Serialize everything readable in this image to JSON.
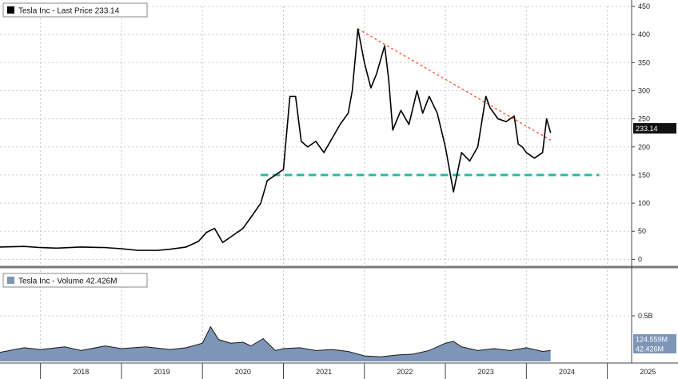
{
  "chart_data": [
    {
      "type": "line",
      "legend": "Tesla Inc - Last Price 233.14",
      "last_value_label": "233.14",
      "colors": {
        "price": "#000000",
        "trend": "#ff6040",
        "support": "#1bbfa8",
        "grid": "#c8c8c8",
        "badge_bg": "#111111",
        "badge_text": "#ffffff"
      },
      "ylim": [
        -8,
        450
      ],
      "y_ticks": [
        "0",
        "50",
        "100",
        "150",
        "200",
        "250",
        "300",
        "350",
        "400",
        "450"
      ],
      "y_tick_values": [
        0,
        50,
        100,
        150,
        200,
        250,
        300,
        350,
        400,
        450
      ],
      "xlim": [
        2017.5,
        2025.3
      ],
      "grid": true,
      "legend_position": "top-left",
      "series": [
        {
          "x": [
            2017.5,
            2017.8,
            2018.0,
            2018.2,
            2018.5,
            2018.8,
            2019.0,
            2019.2,
            2019.45,
            2019.6,
            2019.8,
            2019.95,
            2020.05,
            2020.15,
            2020.25,
            2020.4,
            2020.5,
            2020.6,
            2020.72,
            2020.8,
            2020.9,
            2021.0,
            2021.08,
            2021.15,
            2021.22,
            2021.3,
            2021.4,
            2021.5,
            2021.6,
            2021.7,
            2021.8,
            2021.85,
            2021.92,
            2022.0,
            2022.08,
            2022.15,
            2022.25,
            2022.3,
            2022.35,
            2022.45,
            2022.55,
            2022.65,
            2022.72,
            2022.8,
            2022.9,
            2023.0,
            2023.1,
            2023.2,
            2023.3,
            2023.4,
            2023.5,
            2023.55,
            2023.65,
            2023.75,
            2023.85,
            2023.9,
            2023.95,
            2024.0,
            2024.1,
            2024.2,
            2024.25,
            2024.3
          ],
          "y": [
            22,
            23,
            21,
            20,
            22,
            21,
            19,
            16,
            16,
            18,
            22,
            32,
            48,
            55,
            30,
            45,
            55,
            75,
            100,
            140,
            150,
            160,
            290,
            290,
            210,
            200,
            210,
            190,
            215,
            240,
            260,
            300,
            410,
            350,
            305,
            330,
            380,
            320,
            230,
            265,
            240,
            300,
            260,
            290,
            260,
            200,
            120,
            190,
            175,
            200,
            290,
            270,
            250,
            245,
            255,
            205,
            200,
            190,
            180,
            190,
            250,
            225
          ]
        }
      ],
      "trendline": {
        "x": [
          2021.92,
          2024.3
        ],
        "y": [
          410,
          212
        ]
      },
      "support_line": {
        "x": [
          2020.72,
          2024.9
        ],
        "y": [
          150,
          150
        ]
      }
    },
    {
      "type": "area",
      "legend": "Tesla Inc - Volume 42.426M",
      "y_tick_label": "0.5B",
      "badge_labels": [
        "124.559M",
        "42.426M"
      ],
      "colors": {
        "fill": "#7d95b6",
        "stroke": "#1a1a1a",
        "badge_bg": "#7d95b6",
        "badge_text": "#ffffff"
      },
      "ylim": [
        0,
        1.0
      ],
      "y_tick_values": [
        0.5
      ],
      "xlim": [
        2017.5,
        2025.3
      ],
      "grid": true,
      "legend_position": "top-left",
      "series": [
        {
          "x": [
            2017.5,
            2017.8,
            2018.0,
            2018.3,
            2018.5,
            2018.8,
            2019.0,
            2019.3,
            2019.6,
            2019.8,
            2020.0,
            2020.1,
            2020.2,
            2020.35,
            2020.5,
            2020.6,
            2020.75,
            2020.9,
            2021.0,
            2021.2,
            2021.4,
            2021.6,
            2021.8,
            2022.0,
            2022.2,
            2022.4,
            2022.6,
            2022.8,
            2023.0,
            2023.1,
            2023.2,
            2023.4,
            2023.6,
            2023.8,
            2024.0,
            2024.2,
            2024.3
          ],
          "y": [
            0.1,
            0.15,
            0.13,
            0.16,
            0.12,
            0.17,
            0.14,
            0.16,
            0.13,
            0.15,
            0.2,
            0.38,
            0.24,
            0.2,
            0.21,
            0.17,
            0.25,
            0.12,
            0.14,
            0.15,
            0.12,
            0.13,
            0.11,
            0.06,
            0.05,
            0.07,
            0.08,
            0.12,
            0.2,
            0.22,
            0.16,
            0.12,
            0.14,
            0.12,
            0.15,
            0.11,
            0.12
          ]
        }
      ]
    }
  ],
  "x_axis": {
    "labels": [
      "2018",
      "2019",
      "2020",
      "2021",
      "2022",
      "2023",
      "2024",
      "2025"
    ],
    "label_values": [
      2018.5,
      2019.5,
      2020.5,
      2021.5,
      2022.5,
      2023.5,
      2024.5,
      2025.5
    ],
    "boundaries": [
      2018,
      2019,
      2020,
      2021,
      2022,
      2023,
      2024,
      2025
    ]
  }
}
